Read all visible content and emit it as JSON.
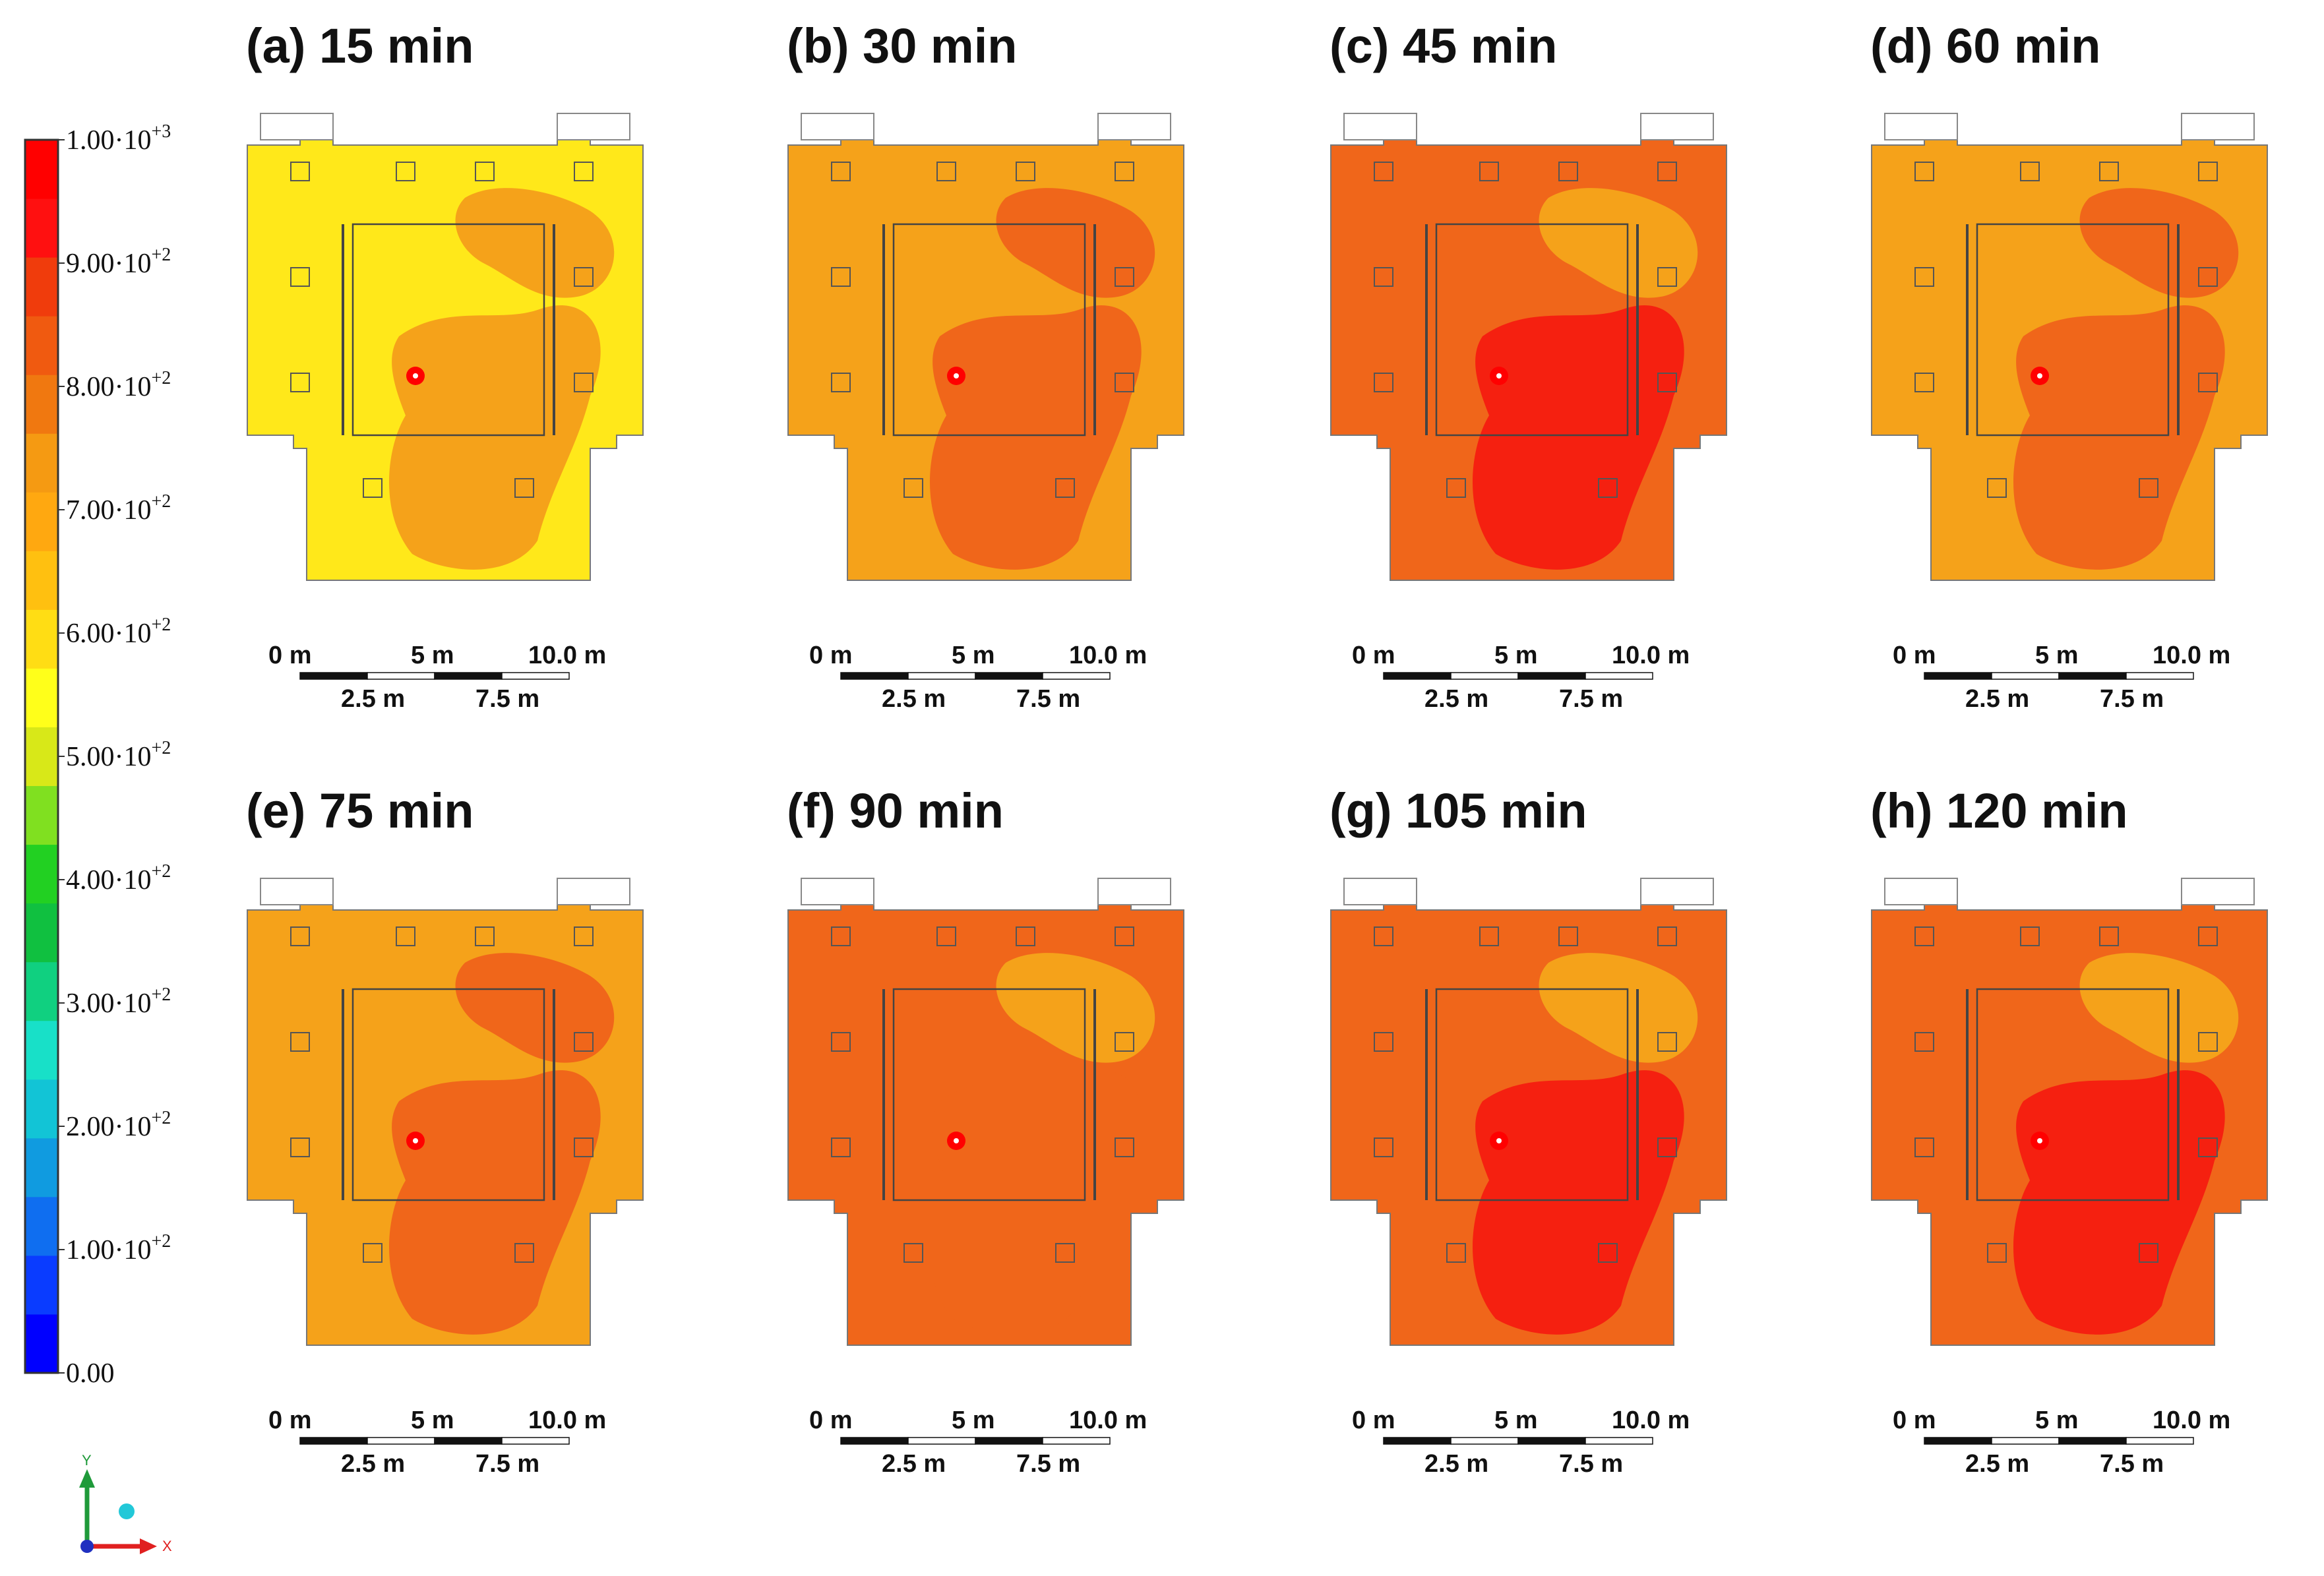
{
  "legend": {
    "colors": [
      "#0000ff",
      "#0a3cff",
      "#0f6ef0",
      "#109be0",
      "#12c4d6",
      "#18e0c8",
      "#10d080",
      "#10c040",
      "#22d022",
      "#80e020",
      "#d8e818",
      "#ffff1a",
      "#ffdd14",
      "#ffc010",
      "#ffa810",
      "#f59a12",
      "#f07810",
      "#f05a10",
      "#f03c0c",
      "#ff1010",
      "#ff0000"
    ],
    "ticks": [
      {
        "mantissa": "1.00·10",
        "exp": "+3"
      },
      {
        "mantissa": "9.00·10",
        "exp": "+2"
      },
      {
        "mantissa": "8.00·10",
        "exp": "+2"
      },
      {
        "mantissa": "7.00·10",
        "exp": "+2"
      },
      {
        "mantissa": "6.00·10",
        "exp": "+2"
      },
      {
        "mantissa": "5.00·10",
        "exp": "+2"
      },
      {
        "mantissa": "4.00·10",
        "exp": "+2"
      },
      {
        "mantissa": "3.00·10",
        "exp": "+2"
      },
      {
        "mantissa": "2.00·10",
        "exp": "+2"
      },
      {
        "mantissa": "1.00·10",
        "exp": "+2"
      },
      {
        "mantissa": "0.00",
        "exp": ""
      }
    ]
  },
  "panels": [
    {
      "title": "(a) 15 min",
      "base": "#ffe81a",
      "hot": "#f5a21a",
      "core": "#f5a21a"
    },
    {
      "title": "(b) 30 min",
      "base": "#f5a21a",
      "hot": "#f0661a",
      "core": "#f0661a"
    },
    {
      "title": "(c) 45 min",
      "base": "#f0661a",
      "hot": "#f5a21a",
      "core": "#f52010"
    },
    {
      "title": "(d) 60 min",
      "base": "#f5a21a",
      "hot": "#f0661a",
      "core": "#f0661a"
    },
    {
      "title": "(e) 75 min",
      "base": "#f5a21a",
      "hot": "#f0661a",
      "core": "#f0661a"
    },
    {
      "title": "(f) 90 min",
      "base": "#f0661a",
      "hot": "#f5a21a",
      "core": "#f0661a"
    },
    {
      "title": "(g) 105 min",
      "base": "#f0661a",
      "hot": "#f5a21a",
      "core": "#f52010"
    },
    {
      "title": "(h) 120 min",
      "base": "#f0661a",
      "hot": "#f5a21a",
      "core": "#f52010"
    }
  ],
  "scale_bar": {
    "top_labels": [
      "0 m",
      "5 m",
      "10.0 m"
    ],
    "bottom_labels": [
      "2.5 m",
      "7.5 m"
    ]
  },
  "axes": {
    "y": "Y",
    "x": "X"
  }
}
